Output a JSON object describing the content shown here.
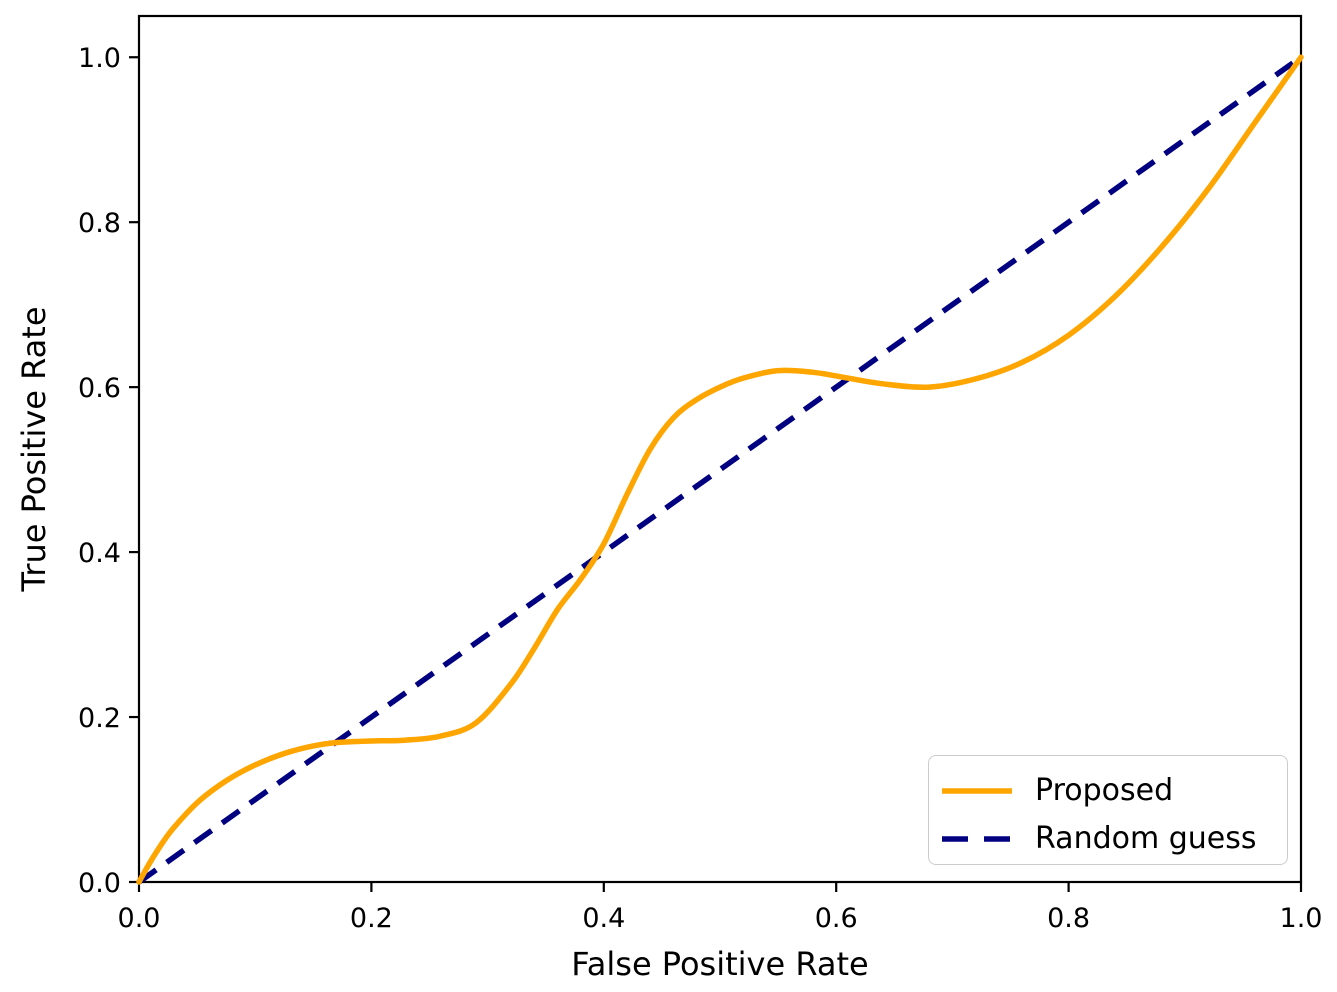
{
  "chart_data": {
    "type": "line",
    "title": "",
    "xlabel": "False Positive Rate",
    "ylabel": "True Positive Rate",
    "xlim": [
      0.0,
      1.0
    ],
    "ylim": [
      0.0,
      1.05
    ],
    "xticks": [
      0.0,
      0.2,
      0.4,
      0.6,
      0.8,
      1.0
    ],
    "yticks": [
      0.0,
      0.2,
      0.4,
      0.6,
      0.8,
      1.0
    ],
    "xtick_labels": [
      "0.0",
      "0.2",
      "0.4",
      "0.6",
      "0.8",
      "1.0"
    ],
    "ytick_labels": [
      "0.0",
      "0.2",
      "0.4",
      "0.6",
      "0.8",
      "1.0"
    ],
    "grid": false,
    "legend_position": "lower right",
    "series": [
      {
        "name": "Proposed",
        "color": "#FFA500",
        "style": "solid",
        "x": [
          0.0,
          0.01,
          0.02,
          0.03,
          0.05,
          0.07,
          0.09,
          0.11,
          0.13,
          0.15,
          0.17,
          0.2,
          0.23,
          0.26,
          0.29,
          0.32,
          0.34,
          0.36,
          0.38,
          0.4,
          0.42,
          0.44,
          0.46,
          0.48,
          0.5,
          0.52,
          0.55,
          0.58,
          0.61,
          0.64,
          0.68,
          0.72,
          0.76,
          0.8,
          0.84,
          0.88,
          0.92,
          0.96,
          1.0
        ],
        "y": [
          0.0,
          0.025,
          0.047,
          0.066,
          0.096,
          0.118,
          0.135,
          0.148,
          0.158,
          0.165,
          0.169,
          0.171,
          0.172,
          0.177,
          0.193,
          0.24,
          0.283,
          0.33,
          0.367,
          0.41,
          0.47,
          0.525,
          0.563,
          0.585,
          0.6,
          0.611,
          0.62,
          0.618,
          0.611,
          0.604,
          0.6,
          0.61,
          0.63,
          0.663,
          0.71,
          0.77,
          0.84,
          0.92,
          1.0
        ]
      },
      {
        "name": "Random guess",
        "color": "#000080",
        "style": "dashed",
        "x": [
          0.0,
          1.0
        ],
        "y": [
          0.0,
          1.0
        ]
      }
    ]
  },
  "axes_style": {
    "background": "#ffffff",
    "spine_color": "#000000",
    "text_color": "#000000"
  }
}
